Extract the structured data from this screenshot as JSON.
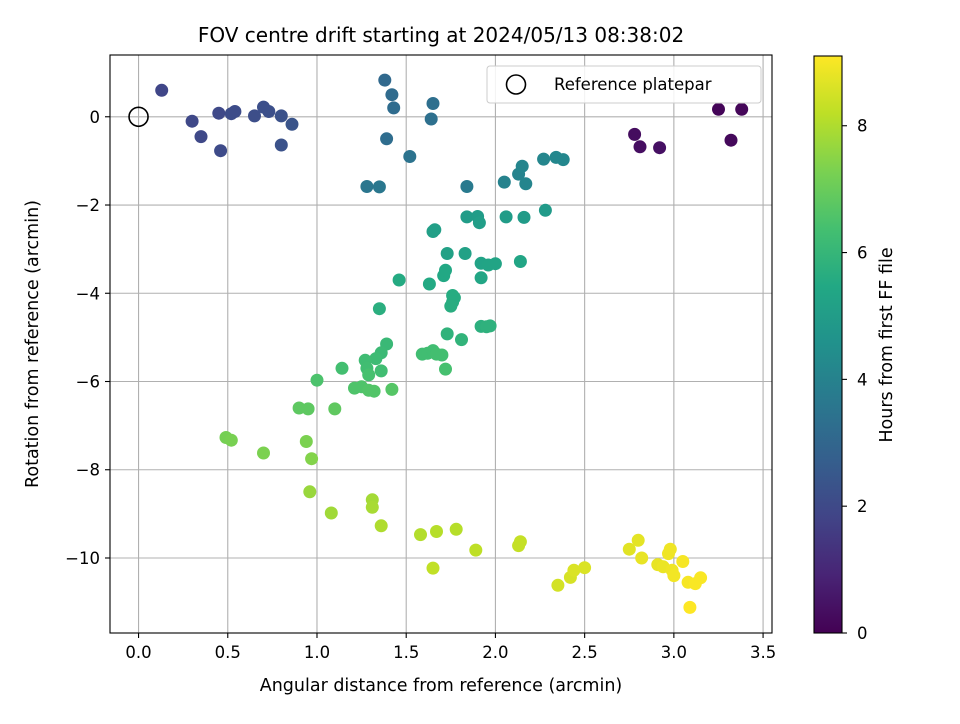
{
  "chart_data": {
    "type": "scatter",
    "title": "FOV centre drift starting at 2024/05/13 08:38:02",
    "xlabel": "Angular distance from reference (arcmin)",
    "ylabel": "Rotation from reference (arcmin)",
    "xlim": [
      -0.16,
      3.55
    ],
    "ylim": [
      -11.7,
      1.4
    ],
    "x_ticks": [
      0.0,
      0.5,
      1.0,
      1.5,
      2.0,
      2.5,
      3.0,
      3.5
    ],
    "x_tick_labels": [
      "0.0",
      "0.5",
      "1.0",
      "1.5",
      "2.0",
      "2.5",
      "3.0",
      "3.5"
    ],
    "y_ticks": [
      0,
      -2,
      -4,
      -6,
      -8,
      -10
    ],
    "y_tick_labels": [
      "0",
      "−2",
      "−4",
      "−6",
      "−8",
      "−10"
    ],
    "grid": true,
    "legend": {
      "placement": "top-right",
      "entries": [
        {
          "label": "Reference platepar",
          "marker": "open-circle",
          "color": "#000000"
        }
      ]
    },
    "reference_point": {
      "x": 0.0,
      "y": 0.0
    },
    "colorbar": {
      "label": "Hours from first FF file",
      "colormap": "viridis",
      "range": [
        0,
        9.1
      ],
      "ticks": [
        0,
        2,
        4,
        6,
        8
      ],
      "tick_labels": [
        "0",
        "2",
        "4",
        "6",
        "8"
      ]
    },
    "points": [
      {
        "x": 3.25,
        "y": 0.17,
        "c": 0.1
      },
      {
        "x": 3.38,
        "y": 0.17,
        "c": 0.15
      },
      {
        "x": 3.32,
        "y": -0.53,
        "c": 0.2
      },
      {
        "x": 2.78,
        "y": -0.4,
        "c": 0.3
      },
      {
        "x": 2.81,
        "y": -0.68,
        "c": 0.35
      },
      {
        "x": 2.92,
        "y": -0.7,
        "c": 0.4
      },
      {
        "x": 0.13,
        "y": 0.6,
        "c": 1.9
      },
      {
        "x": 0.3,
        "y": -0.1,
        "c": 1.95
      },
      {
        "x": 0.35,
        "y": -0.45,
        "c": 2.0
      },
      {
        "x": 0.45,
        "y": 0.08,
        "c": 2.0
      },
      {
        "x": 0.46,
        "y": -0.77,
        "c": 2.05
      },
      {
        "x": 0.52,
        "y": 0.07,
        "c": 2.1
      },
      {
        "x": 0.54,
        "y": 0.12,
        "c": 2.1
      },
      {
        "x": 0.65,
        "y": 0.02,
        "c": 2.15
      },
      {
        "x": 0.7,
        "y": 0.22,
        "c": 2.2
      },
      {
        "x": 0.73,
        "y": 0.12,
        "c": 2.2
      },
      {
        "x": 0.8,
        "y": 0.02,
        "c": 2.25
      },
      {
        "x": 0.8,
        "y": -0.64,
        "c": 2.3
      },
      {
        "x": 0.86,
        "y": -0.17,
        "c": 2.35
      },
      {
        "x": 1.38,
        "y": 0.83,
        "c": 3.1
      },
      {
        "x": 1.42,
        "y": 0.5,
        "c": 3.15
      },
      {
        "x": 1.43,
        "y": 0.2,
        "c": 3.2
      },
      {
        "x": 1.39,
        "y": -0.5,
        "c": 3.25
      },
      {
        "x": 1.65,
        "y": 0.3,
        "c": 3.3
      },
      {
        "x": 1.64,
        "y": -0.05,
        "c": 3.35
      },
      {
        "x": 1.52,
        "y": -0.9,
        "c": 3.45
      },
      {
        "x": 1.28,
        "y": -1.58,
        "c": 3.55
      },
      {
        "x": 1.35,
        "y": -1.59,
        "c": 3.6
      },
      {
        "x": 1.84,
        "y": -1.58,
        "c": 3.7
      },
      {
        "x": 2.05,
        "y": -1.48,
        "c": 4.0
      },
      {
        "x": 2.13,
        "y": -1.3,
        "c": 4.05
      },
      {
        "x": 2.15,
        "y": -1.12,
        "c": 4.1
      },
      {
        "x": 2.17,
        "y": -1.52,
        "c": 4.1
      },
      {
        "x": 2.27,
        "y": -0.96,
        "c": 4.15
      },
      {
        "x": 2.34,
        "y": -0.92,
        "c": 4.2
      },
      {
        "x": 2.38,
        "y": -0.97,
        "c": 4.2
      },
      {
        "x": 2.28,
        "y": -2.12,
        "c": 4.9
      },
      {
        "x": 2.16,
        "y": -2.28,
        "c": 4.95
      },
      {
        "x": 2.06,
        "y": -2.27,
        "c": 5.0
      },
      {
        "x": 1.84,
        "y": -2.27,
        "c": 5.0
      },
      {
        "x": 1.9,
        "y": -2.26,
        "c": 5.0
      },
      {
        "x": 1.91,
        "y": -2.4,
        "c": 5.05
      },
      {
        "x": 1.65,
        "y": -2.6,
        "c": 5.1
      },
      {
        "x": 1.66,
        "y": -2.56,
        "c": 5.1
      },
      {
        "x": 1.73,
        "y": -3.1,
        "c": 5.2
      },
      {
        "x": 1.83,
        "y": -3.1,
        "c": 5.2
      },
      {
        "x": 1.92,
        "y": -3.32,
        "c": 5.25
      },
      {
        "x": 1.96,
        "y": -3.36,
        "c": 5.3
      },
      {
        "x": 2.0,
        "y": -3.33,
        "c": 5.3
      },
      {
        "x": 2.14,
        "y": -3.28,
        "c": 5.35
      },
      {
        "x": 1.92,
        "y": -3.65,
        "c": 5.4
      },
      {
        "x": 1.71,
        "y": -3.6,
        "c": 5.45
      },
      {
        "x": 1.72,
        "y": -3.48,
        "c": 5.45
      },
      {
        "x": 1.63,
        "y": -3.79,
        "c": 5.5
      },
      {
        "x": 1.46,
        "y": -3.7,
        "c": 5.55
      },
      {
        "x": 1.76,
        "y": -4.05,
        "c": 5.6
      },
      {
        "x": 1.77,
        "y": -4.1,
        "c": 5.6
      },
      {
        "x": 1.76,
        "y": -4.2,
        "c": 5.6
      },
      {
        "x": 1.75,
        "y": -4.29,
        "c": 5.65
      },
      {
        "x": 1.35,
        "y": -4.35,
        "c": 5.7
      },
      {
        "x": 1.92,
        "y": -4.75,
        "c": 5.75
      },
      {
        "x": 1.95,
        "y": -4.76,
        "c": 5.8
      },
      {
        "x": 1.97,
        "y": -4.74,
        "c": 5.8
      },
      {
        "x": 1.73,
        "y": -4.92,
        "c": 5.85
      },
      {
        "x": 1.81,
        "y": -5.05,
        "c": 5.9
      },
      {
        "x": 1.39,
        "y": -5.15,
        "c": 6.1
      },
      {
        "x": 1.36,
        "y": -5.35,
        "c": 6.15
      },
      {
        "x": 1.33,
        "y": -5.48,
        "c": 6.2
      },
      {
        "x": 1.27,
        "y": -5.52,
        "c": 6.25
      },
      {
        "x": 1.28,
        "y": -5.7,
        "c": 6.3
      },
      {
        "x": 1.36,
        "y": -5.76,
        "c": 6.3
      },
      {
        "x": 1.14,
        "y": -5.7,
        "c": 6.35
      },
      {
        "x": 1.59,
        "y": -5.38,
        "c": 6.3
      },
      {
        "x": 1.62,
        "y": -5.36,
        "c": 6.3
      },
      {
        "x": 1.65,
        "y": -5.3,
        "c": 6.3
      },
      {
        "x": 1.67,
        "y": -5.38,
        "c": 6.35
      },
      {
        "x": 1.7,
        "y": -5.4,
        "c": 6.35
      },
      {
        "x": 1.72,
        "y": -5.72,
        "c": 6.4
      },
      {
        "x": 1.29,
        "y": -5.85,
        "c": 6.4
      },
      {
        "x": 1.0,
        "y": -5.97,
        "c": 6.5
      },
      {
        "x": 1.25,
        "y": -6.12,
        "c": 6.55
      },
      {
        "x": 1.21,
        "y": -6.15,
        "c": 6.55
      },
      {
        "x": 1.29,
        "y": -6.2,
        "c": 6.6
      },
      {
        "x": 1.32,
        "y": -6.22,
        "c": 6.6
      },
      {
        "x": 1.42,
        "y": -6.18,
        "c": 6.65
      },
      {
        "x": 0.9,
        "y": -6.6,
        "c": 6.8
      },
      {
        "x": 0.95,
        "y": -6.62,
        "c": 6.8
      },
      {
        "x": 1.1,
        "y": -6.62,
        "c": 6.85
      },
      {
        "x": 0.49,
        "y": -7.27,
        "c": 7.2
      },
      {
        "x": 0.52,
        "y": -7.33,
        "c": 7.25
      },
      {
        "x": 0.7,
        "y": -7.62,
        "c": 7.3
      },
      {
        "x": 0.94,
        "y": -7.36,
        "c": 7.3
      },
      {
        "x": 0.97,
        "y": -7.75,
        "c": 7.4
      },
      {
        "x": 0.96,
        "y": -8.5,
        "c": 7.7
      },
      {
        "x": 1.08,
        "y": -8.98,
        "c": 7.8
      },
      {
        "x": 1.31,
        "y": -8.68,
        "c": 7.85
      },
      {
        "x": 1.31,
        "y": -8.85,
        "c": 7.9
      },
      {
        "x": 1.36,
        "y": -9.27,
        "c": 8.0
      },
      {
        "x": 1.58,
        "y": -9.47,
        "c": 8.05
      },
      {
        "x": 1.67,
        "y": -9.4,
        "c": 8.1
      },
      {
        "x": 1.78,
        "y": -9.35,
        "c": 8.1
      },
      {
        "x": 1.89,
        "y": -9.82,
        "c": 8.2
      },
      {
        "x": 2.13,
        "y": -9.72,
        "c": 8.3
      },
      {
        "x": 2.14,
        "y": -9.63,
        "c": 8.3
      },
      {
        "x": 1.65,
        "y": -10.23,
        "c": 8.25
      },
      {
        "x": 2.35,
        "y": -10.62,
        "c": 8.5
      },
      {
        "x": 2.42,
        "y": -10.44,
        "c": 8.55
      },
      {
        "x": 2.44,
        "y": -10.28,
        "c": 8.6
      },
      {
        "x": 2.5,
        "y": -10.22,
        "c": 8.6
      },
      {
        "x": 2.75,
        "y": -9.8,
        "c": 8.7
      },
      {
        "x": 2.8,
        "y": -9.6,
        "c": 8.75
      },
      {
        "x": 2.82,
        "y": -10.0,
        "c": 8.8
      },
      {
        "x": 2.91,
        "y": -10.15,
        "c": 8.8
      },
      {
        "x": 2.94,
        "y": -10.2,
        "c": 8.85
      },
      {
        "x": 2.97,
        "y": -9.9,
        "c": 8.9
      },
      {
        "x": 2.98,
        "y": -9.8,
        "c": 8.9
      },
      {
        "x": 2.99,
        "y": -10.28,
        "c": 8.9
      },
      {
        "x": 3.0,
        "y": -10.4,
        "c": 8.95
      },
      {
        "x": 3.05,
        "y": -10.08,
        "c": 9.0
      },
      {
        "x": 3.08,
        "y": -10.55,
        "c": 9.0
      },
      {
        "x": 3.12,
        "y": -10.58,
        "c": 9.05
      },
      {
        "x": 3.15,
        "y": -10.45,
        "c": 9.05
      },
      {
        "x": 3.09,
        "y": -11.12,
        "c": 9.1
      }
    ]
  }
}
